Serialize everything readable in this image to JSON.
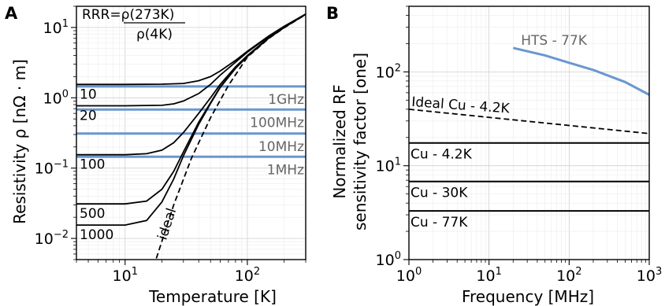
{
  "chart_data": [
    {
      "panel": "A",
      "type": "line",
      "xlabel": "Temperature [K]",
      "ylabel": "Resistivity ρ [nΩ · m]",
      "x_scale": "log",
      "y_scale": "log",
      "xlim": [
        4,
        300
      ],
      "ylim": [
        0.005,
        20
      ],
      "x_ticks": [
        {
          "base": "10",
          "exp": "1",
          "value": 10
        },
        {
          "base": "10",
          "exp": "2",
          "value": 100
        }
      ],
      "y_ticks": [
        {
          "base": "10",
          "exp": "−2",
          "value": 0.01
        },
        {
          "base": "10",
          "exp": "−1",
          "value": 0.1
        },
        {
          "base": "10",
          "exp": "0",
          "value": 1
        },
        {
          "base": "10",
          "exp": "1",
          "value": 10
        }
      ],
      "annotation_lines": [
        "RRR=ρ(273K)",
        "ρ(4K)"
      ],
      "series": [
        {
          "name": "10",
          "x": [
            4,
            10,
            20,
            30,
            40,
            50,
            60,
            80,
            100,
            150,
            200,
            300
          ],
          "y": [
            1.55,
            1.55,
            1.56,
            1.6,
            1.75,
            2.0,
            2.4,
            3.4,
            4.6,
            7.6,
            10.4,
            15.5
          ]
        },
        {
          "name": "20",
          "x": [
            4,
            10,
            20,
            25,
            30,
            40,
            50,
            60,
            80,
            100,
            150,
            200,
            300
          ],
          "y": [
            0.77,
            0.77,
            0.78,
            0.82,
            0.9,
            1.15,
            1.55,
            2.1,
            3.2,
            4.45,
            7.5,
            10.3,
            15.5
          ]
        },
        {
          "name": "100",
          "x": [
            4,
            10,
            15,
            20,
            25,
            30,
            40,
            50,
            60,
            80,
            100,
            150,
            200,
            300
          ],
          "y": [
            0.155,
            0.155,
            0.16,
            0.18,
            0.23,
            0.32,
            0.6,
            1.0,
            1.55,
            2.75,
            4.0,
            7.2,
            10.1,
            15.4
          ]
        },
        {
          "name": "500",
          "x": [
            4,
            10,
            15,
            20,
            25,
            30,
            40,
            50,
            60,
            80,
            100,
            150,
            200,
            300
          ],
          "y": [
            0.031,
            0.031,
            0.034,
            0.05,
            0.09,
            0.17,
            0.45,
            0.85,
            1.42,
            2.65,
            3.9,
            7.1,
            10.0,
            15.4
          ]
        },
        {
          "name": "1000",
          "x": [
            4,
            10,
            15,
            20,
            25,
            30,
            40,
            50,
            60,
            80,
            100,
            150,
            200,
            300
          ],
          "y": [
            0.0155,
            0.0155,
            0.018,
            0.033,
            0.07,
            0.15,
            0.42,
            0.83,
            1.4,
            2.62,
            3.88,
            7.1,
            10.0,
            15.4
          ]
        },
        {
          "name": "ideal",
          "style": "dashed",
          "x": [
            18,
            25,
            35,
            50,
            70,
            100,
            150,
            200,
            300
          ],
          "y": [
            0.0052,
            0.03,
            0.14,
            0.52,
            1.5,
            3.8,
            7.0,
            9.9,
            15.3
          ]
        }
      ],
      "reference_lines": [
        {
          "label": "1GHz",
          "y": 1.45
        },
        {
          "label": "100MHz",
          "y": 0.68
        },
        {
          "label": "10MHz",
          "y": 0.31
        },
        {
          "label": "1MHz",
          "y": 0.145
        }
      ],
      "reference_color": "#6a97cf"
    },
    {
      "panel": "B",
      "type": "line",
      "xlabel": "Frequency [MHz]",
      "ylabel_lines": [
        "Normalized RF",
        "sensitivity factor [one]"
      ],
      "x_scale": "log",
      "y_scale": "log",
      "xlim": [
        1,
        1000
      ],
      "ylim": [
        1,
        500
      ],
      "x_ticks": [
        {
          "base": "10",
          "exp": "0",
          "value": 1
        },
        {
          "base": "10",
          "exp": "1",
          "value": 10
        },
        {
          "base": "10",
          "exp": "2",
          "value": 100
        },
        {
          "base": "10",
          "exp": "3",
          "value": 1000
        }
      ],
      "y_ticks": [
        {
          "base": "10",
          "exp": "0",
          "value": 1
        },
        {
          "base": "10",
          "exp": "1",
          "value": 10
        },
        {
          "base": "10",
          "exp": "2",
          "value": 100
        }
      ],
      "series": [
        {
          "name": "HTS - 77K",
          "color": "#6a97cf",
          "x": [
            20,
            50,
            100,
            200,
            500,
            1000
          ],
          "y": [
            180,
            150,
            125,
            105,
            78,
            57
          ]
        },
        {
          "name": "Ideal Cu - 4.2K",
          "style": "dashed",
          "x": [
            1,
            1000
          ],
          "y": [
            40,
            22
          ]
        },
        {
          "name": "Cu - 4.2K",
          "x": [
            1,
            1000
          ],
          "y": [
            17.5,
            17.5
          ]
        },
        {
          "name": "Cu - 30K",
          "x": [
            1,
            1000
          ],
          "y": [
            6.8,
            6.8
          ]
        },
        {
          "name": "Cu - 77K",
          "x": [
            1,
            1000
          ],
          "y": [
            3.3,
            3.3
          ]
        }
      ]
    }
  ]
}
